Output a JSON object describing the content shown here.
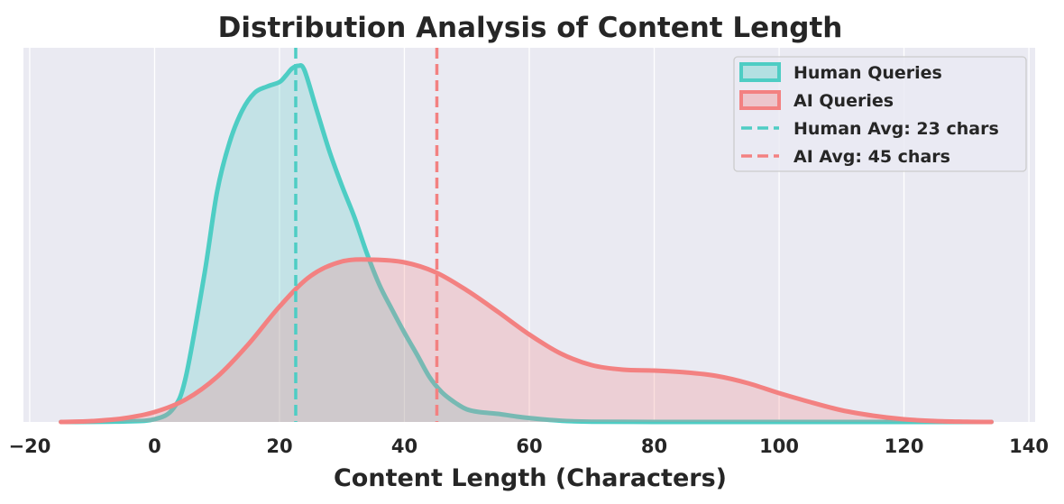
{
  "chart_data": {
    "type": "area",
    "title": "Distribution Analysis of Content Length",
    "xlabel": "Content Length (Characters)",
    "ylabel": "",
    "xlim": [
      -21,
      141
    ],
    "ylim": [
      0,
      0.0415
    ],
    "xticks": [
      -20,
      0,
      20,
      40,
      60,
      80,
      100,
      120,
      140
    ],
    "xtick_labels": [
      "−20",
      "0",
      "20",
      "40",
      "60",
      "80",
      "100",
      "120",
      "140"
    ],
    "grid": true,
    "legend_position": "top-right",
    "series": [
      {
        "name": "Human Queries",
        "color": "#4ecdc4",
        "x": [
          -15,
          -5,
          0,
          3,
          5,
          8,
          10,
          12,
          14,
          16,
          18,
          20,
          21,
          22,
          23,
          24,
          26,
          28,
          30,
          32,
          34,
          36,
          38,
          40,
          42,
          44,
          46,
          48,
          50,
          52,
          55,
          58,
          62,
          66,
          70,
          80,
          90,
          134
        ],
        "y": [
          0,
          5e-05,
          0.0003,
          0.0015,
          0.005,
          0.0165,
          0.0255,
          0.031,
          0.0345,
          0.0365,
          0.0372,
          0.0377,
          0.0384,
          0.0392,
          0.0395,
          0.039,
          0.0345,
          0.03,
          0.0262,
          0.0227,
          0.0187,
          0.0152,
          0.0125,
          0.0099,
          0.0075,
          0.005,
          0.0033,
          0.0022,
          0.0014,
          0.0011,
          0.0009,
          0.0006,
          0.0003,
          0.0001,
          3e-05,
          0,
          0,
          0
        ]
      },
      {
        "name": "AI Queries",
        "color": "#f38181",
        "x": [
          -15,
          -10,
          -5,
          0,
          5,
          10,
          15,
          20,
          25,
          30,
          35,
          40,
          45,
          50,
          55,
          60,
          65,
          70,
          75,
          80,
          85,
          90,
          95,
          100,
          105,
          110,
          115,
          120,
          125,
          130,
          134
        ],
        "y": [
          0,
          0.0001,
          0.0004,
          0.0011,
          0.0025,
          0.005,
          0.0086,
          0.0128,
          0.0162,
          0.0178,
          0.018,
          0.0177,
          0.0166,
          0.0146,
          0.0122,
          0.0097,
          0.0076,
          0.0063,
          0.0058,
          0.0057,
          0.0055,
          0.0051,
          0.0043,
          0.0032,
          0.0022,
          0.0013,
          0.0007,
          0.0003,
          0.0001,
          2e-05,
          0
        ]
      }
    ],
    "reference_lines": [
      {
        "name": "Human Avg: 23 chars",
        "x": 22.6,
        "color": "#4ecdc4",
        "style": "dashed"
      },
      {
        "name": "AI Avg: 45 chars",
        "x": 45.2,
        "color": "#f38181",
        "style": "dashed"
      }
    ]
  }
}
